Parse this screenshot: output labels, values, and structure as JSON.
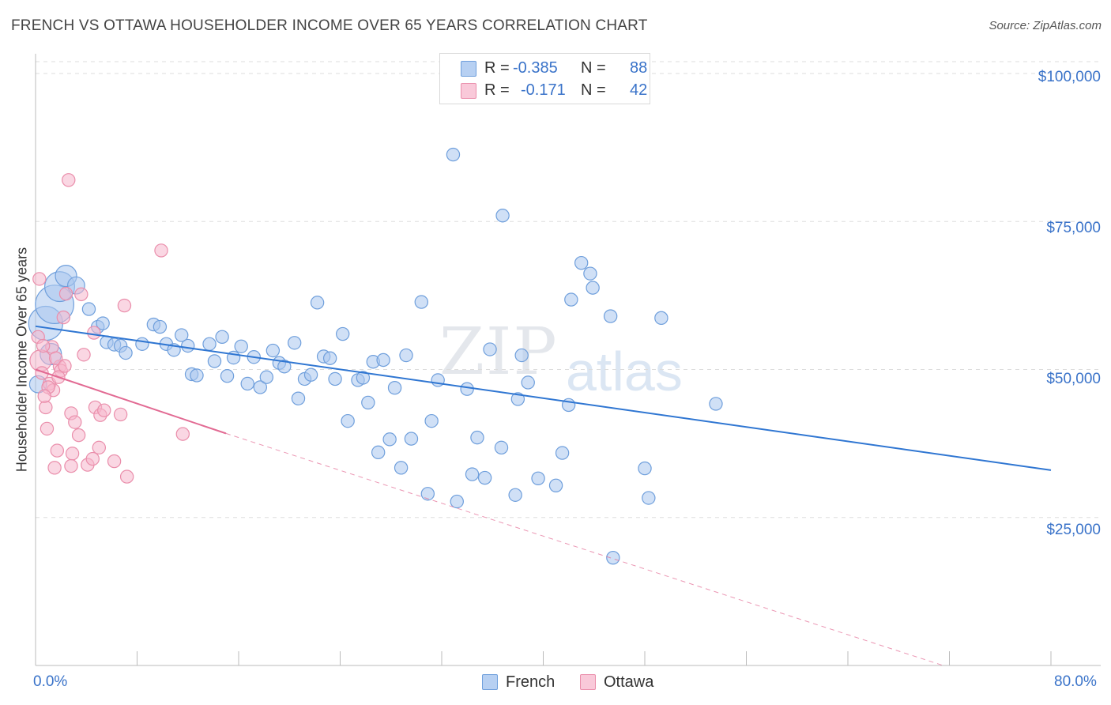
{
  "title": "FRENCH VS OTTAWA HOUSEHOLDER INCOME OVER 65 YEARS CORRELATION CHART",
  "source": "Source: ZipAtlas.com",
  "watermark": {
    "zip": "ZIP",
    "atlas": "atlas"
  },
  "colors": {
    "french_fill": "#a9c6ee",
    "french_stroke": "#6f9fdc",
    "french_line": "#2f76d2",
    "ottawa_fill": "#f6b7cc",
    "ottawa_stroke": "#ea8eab",
    "ottawa_line": "#e26a93",
    "axis_text": "#3a73c9",
    "grid": "#dddddd"
  },
  "legend": {
    "rows": [
      {
        "r_label": "R =",
        "r_value": "-0.385",
        "n_label": "N =",
        "n_value": "88"
      },
      {
        "r_label": "R =",
        "r_value": "-0.171",
        "n_label": "N =",
        "n_value": "42"
      }
    ],
    "bottom": [
      "French",
      "Ottawa"
    ]
  },
  "chart_data": {
    "type": "scatter",
    "title": "FRENCH VS OTTAWA HOUSEHOLDER INCOME OVER 65 YEARS CORRELATION CHART",
    "xlabel": "",
    "ylabel": "Householder Income Over 65 years",
    "xlim": [
      0,
      80
    ],
    "ylim": [
      0,
      102000
    ],
    "x_tick_labels": [
      "0.0%",
      "80.0%"
    ],
    "y_ticks": [
      25000,
      50000,
      75000,
      100000
    ],
    "y_tick_labels": [
      "$25,000",
      "$50,000",
      "$75,000",
      "$100,000"
    ],
    "grid": "horizontal dashed",
    "series": [
      {
        "name": "French",
        "r": -0.385,
        "n": 88,
        "trend": {
          "x0": 0,
          "y0": 57300,
          "x1": 80,
          "y1": 33000
        },
        "points": [
          [
            0.2,
            47500,
            4
          ],
          [
            0.8,
            57800,
            8
          ],
          [
            1.5,
            61000,
            9
          ],
          [
            1.9,
            64000,
            7
          ],
          [
            2.4,
            65800,
            5
          ],
          [
            3.2,
            64200,
            4
          ],
          [
            1.2,
            52600,
            5
          ],
          [
            4.2,
            60200,
            3
          ],
          [
            4.9,
            57200,
            3
          ],
          [
            5.3,
            57800,
            3
          ],
          [
            5.6,
            54600,
            3
          ],
          [
            6.2,
            54200,
            3
          ],
          [
            6.7,
            54000,
            3
          ],
          [
            7.1,
            52800,
            3
          ],
          [
            9.3,
            57600,
            3
          ],
          [
            8.4,
            54300,
            3
          ],
          [
            9.8,
            57200,
            3
          ],
          [
            10.3,
            54300,
            3
          ],
          [
            10.9,
            53300,
            3
          ],
          [
            11.5,
            55800,
            3
          ],
          [
            12.0,
            54000,
            3
          ],
          [
            12.3,
            49200,
            3
          ],
          [
            12.7,
            49000,
            3
          ],
          [
            13.7,
            54300,
            3
          ],
          [
            14.1,
            51400,
            3
          ],
          [
            14.7,
            55500,
            3
          ],
          [
            15.1,
            48900,
            3
          ],
          [
            15.6,
            52000,
            3
          ],
          [
            16.2,
            53900,
            3
          ],
          [
            16.7,
            47600,
            3
          ],
          [
            17.2,
            52100,
            3
          ],
          [
            17.7,
            47000,
            3
          ],
          [
            18.2,
            48700,
            3
          ],
          [
            18.7,
            53200,
            3
          ],
          [
            19.2,
            51100,
            3
          ],
          [
            19.6,
            50500,
            3
          ],
          [
            20.4,
            54500,
            3
          ],
          [
            20.7,
            45100,
            3
          ],
          [
            21.2,
            48400,
            3
          ],
          [
            21.7,
            49100,
            3
          ],
          [
            22.2,
            61300,
            3
          ],
          [
            22.7,
            52200,
            3
          ],
          [
            23.2,
            51900,
            3
          ],
          [
            23.6,
            48400,
            3
          ],
          [
            24.2,
            56000,
            3
          ],
          [
            24.6,
            41300,
            3
          ],
          [
            25.4,
            48200,
            3
          ],
          [
            25.8,
            48600,
            3
          ],
          [
            26.2,
            44400,
            3
          ],
          [
            26.6,
            51300,
            3
          ],
          [
            27.4,
            51600,
            3
          ],
          [
            27.9,
            38200,
            3
          ],
          [
            28.3,
            46900,
            3
          ],
          [
            28.8,
            33400,
            3
          ],
          [
            29.2,
            52400,
            3
          ],
          [
            29.6,
            38300,
            3
          ],
          [
            30.4,
            61400,
            3
          ],
          [
            30.9,
            29000,
            3
          ],
          [
            31.2,
            41300,
            3
          ],
          [
            31.7,
            48200,
            3
          ],
          [
            32.9,
            86300,
            3
          ],
          [
            33.2,
            27700,
            3
          ],
          [
            34.0,
            46700,
            3
          ],
          [
            34.4,
            32300,
            3
          ],
          [
            34.8,
            38500,
            3
          ],
          [
            35.4,
            31700,
            3
          ],
          [
            35.8,
            53400,
            3
          ],
          [
            36.7,
            36800,
            3
          ],
          [
            36.8,
            76000,
            3
          ],
          [
            37.8,
            28800,
            3
          ],
          [
            38.3,
            52400,
            3
          ],
          [
            38.8,
            47800,
            3
          ],
          [
            39.6,
            31600,
            3
          ],
          [
            41.0,
            30400,
            3
          ],
          [
            41.5,
            35900,
            3
          ],
          [
            42.2,
            61800,
            3
          ],
          [
            43.0,
            68000,
            3
          ],
          [
            43.7,
            66200,
            3
          ],
          [
            43.9,
            63800,
            3
          ],
          [
            45.3,
            59000,
            3
          ],
          [
            48.0,
            33300,
            3
          ],
          [
            48.3,
            28300,
            3
          ],
          [
            49.3,
            58700,
            3
          ],
          [
            53.6,
            44200,
            3
          ],
          [
            38.0,
            45000,
            3
          ],
          [
            27.0,
            36000,
            3
          ],
          [
            45.5,
            18200,
            3
          ],
          [
            42.0,
            44000,
            3
          ]
        ]
      },
      {
        "name": "Ottawa",
        "r": -0.171,
        "n": 42,
        "trend": {
          "x0": 0,
          "y0": 50000,
          "x1": 15,
          "y1": 39200,
          "dashed_to_x": 71.5,
          "dashed_to_y": 0
        },
        "points": [
          [
            0.2,
            55500,
            3
          ],
          [
            0.4,
            51500,
            5
          ],
          [
            0.5,
            49400,
            3
          ],
          [
            0.3,
            65300,
            3
          ],
          [
            0.8,
            43600,
            3
          ],
          [
            0.9,
            40000,
            3
          ],
          [
            1.1,
            47600,
            3
          ],
          [
            1.3,
            53800,
            3
          ],
          [
            1.4,
            46500,
            3
          ],
          [
            1.5,
            33400,
            3
          ],
          [
            1.7,
            36300,
            3
          ],
          [
            1.9,
            50500,
            3
          ],
          [
            2.0,
            49800,
            3
          ],
          [
            2.2,
            58800,
            3
          ],
          [
            2.4,
            62800,
            3
          ],
          [
            2.6,
            82000,
            3
          ],
          [
            2.8,
            42600,
            3
          ],
          [
            2.9,
            35800,
            3
          ],
          [
            2.8,
            33700,
            3
          ],
          [
            3.1,
            41100,
            3
          ],
          [
            3.4,
            38900,
            3
          ],
          [
            3.6,
            62700,
            3
          ],
          [
            4.1,
            33900,
            3
          ],
          [
            4.5,
            34900,
            3
          ],
          [
            4.6,
            56200,
            3
          ],
          [
            4.7,
            43600,
            3
          ],
          [
            5.0,
            36800,
            3
          ],
          [
            5.1,
            42300,
            3
          ],
          [
            5.4,
            43100,
            3
          ],
          [
            6.2,
            34500,
            3
          ],
          [
            6.7,
            42400,
            3
          ],
          [
            7.0,
            60800,
            3
          ],
          [
            7.2,
            31900,
            3
          ],
          [
            9.9,
            70100,
            3
          ],
          [
            11.6,
            39100,
            3
          ],
          [
            1.6,
            51900,
            3
          ],
          [
            1.0,
            47000,
            3
          ],
          [
            0.6,
            54000,
            3
          ],
          [
            1.8,
            48700,
            3
          ],
          [
            2.3,
            50600,
            3
          ],
          [
            3.8,
            52500,
            3
          ],
          [
            0.7,
            45500,
            3
          ]
        ]
      }
    ]
  }
}
